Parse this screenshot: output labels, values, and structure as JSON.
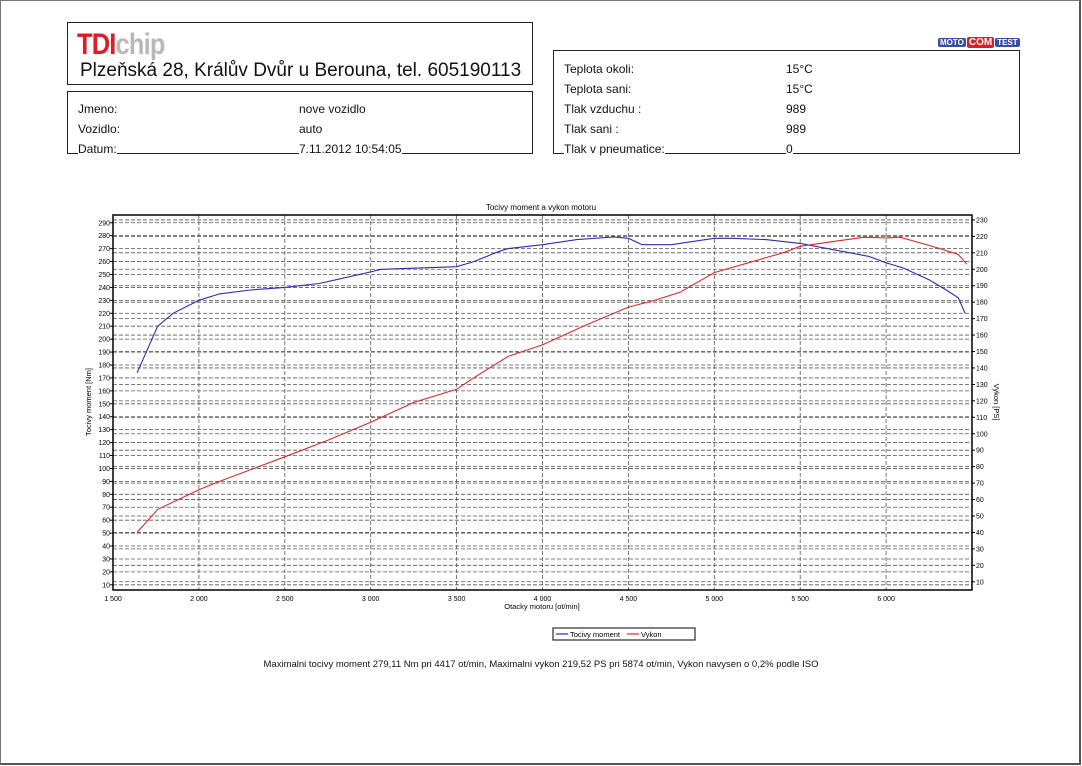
{
  "header": {
    "logo_red": "TDI",
    "logo_grey": "chip",
    "address": "Plzeňská 28, Králův Dvůr u Berouna, tel. 605190113",
    "badge": [
      "MOTO",
      "COM",
      "TEST"
    ]
  },
  "vehicle": [
    {
      "label": "Jmeno:",
      "value": "nove vozidlo"
    },
    {
      "label": "Vozidlo:",
      "value": "auto"
    },
    {
      "label": "Datum:",
      "value": "7.11.2012 10:54:05"
    }
  ],
  "conditions": [
    {
      "label": "Teplota okoli:",
      "value": "15°C"
    },
    {
      "label": "Teplota sani:",
      "value": "15°C"
    },
    {
      "label": "Tlak vzduchu :",
      "value": "989"
    },
    {
      "label": "Tlak sani :",
      "value": "989"
    },
    {
      "label": "Tlak v pneumatice:",
      "value": "0"
    }
  ],
  "footer": "Maximalni tocivy moment 279,11 Nm pri 4417 ot/min,  Maximalni vykon 219,52 PS pri 5874 ot/min,  Vykon navysen o 0,2% podle ISO",
  "chart_data": {
    "type": "line",
    "title": "Tocivy moment a vykon motoru",
    "xlabel": "Otacky motoru [ot/min]",
    "ylabel": "Tocivy moment [Nm]",
    "y2label": "Vykon [PS]",
    "xlim": [
      1500,
      6500
    ],
    "ylim": [
      6,
      296
    ],
    "y2lim": [
      5,
      233
    ],
    "xticks": [
      1500,
      2000,
      2500,
      3000,
      3500,
      4000,
      4500,
      5000,
      5500,
      6000
    ],
    "xtick_labels": [
      "1 500",
      "2 000",
      "2 500",
      "3 000",
      "3 500",
      "4 000",
      "4 500",
      "5 000",
      "5 500",
      "6 000"
    ],
    "yticks": [
      10,
      20,
      30,
      40,
      50,
      60,
      70,
      80,
      90,
      100,
      110,
      120,
      130,
      140,
      150,
      160,
      170,
      180,
      190,
      200,
      210,
      220,
      230,
      240,
      250,
      260,
      270,
      280,
      290
    ],
    "y2ticks": [
      10,
      20,
      30,
      40,
      50,
      60,
      70,
      80,
      90,
      100,
      110,
      120,
      130,
      140,
      150,
      160,
      170,
      180,
      190,
      200,
      210,
      220,
      230
    ],
    "grid": true,
    "legend": "bottom-center",
    "series": [
      {
        "name": "Tocivy moment",
        "axis": "left",
        "color": "#2b2bb0",
        "x": [
          1640,
          1760,
          1850,
          2000,
          2120,
          2300,
          2500,
          2700,
          2800,
          3000,
          3060,
          3500,
          3600,
          3750,
          3800,
          4000,
          4200,
          4417,
          4500,
          4580,
          4750,
          5000,
          5100,
          5300,
          5500,
          5700,
          5900,
          6000,
          6100,
          6250,
          6350,
          6420,
          6460
        ],
        "y": [
          174,
          210,
          220,
          230,
          235,
          238,
          240,
          243,
          246,
          252,
          254,
          256,
          260,
          268,
          270,
          273,
          277,
          279,
          278,
          273,
          273,
          278,
          278,
          277,
          274,
          269,
          264,
          259,
          255,
          246,
          238,
          232,
          220
        ]
      },
      {
        "name": "Vykon",
        "axis": "right",
        "color": "#d42a2a",
        "x": [
          1640,
          1760,
          2000,
          2120,
          2500,
          2750,
          3000,
          3250,
          3500,
          3600,
          3800,
          4000,
          4250,
          4500,
          4650,
          4800,
          5000,
          5200,
          5400,
          5500,
          5700,
          5874,
          6000,
          6080,
          6200,
          6300,
          6420,
          6470
        ],
        "y": [
          40,
          54,
          66,
          71,
          86,
          96,
          107,
          119,
          127,
          134,
          147,
          154,
          166,
          177,
          181,
          186,
          198,
          204,
          210,
          214,
          217,
          219.5,
          219,
          219.5,
          216,
          213,
          209,
          203
        ]
      }
    ]
  }
}
